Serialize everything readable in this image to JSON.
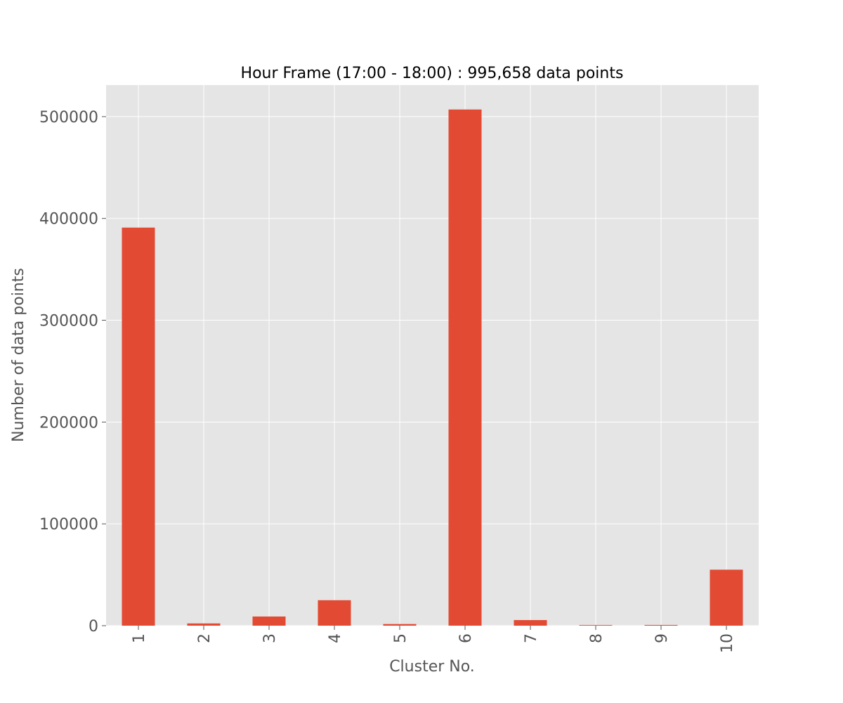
{
  "chart_data": {
    "type": "bar",
    "title": "Hour Frame (17:00 - 18:00) : 995,658 data points",
    "xlabel": "Cluster No.",
    "ylabel": "Number of data points",
    "categories": [
      "1",
      "2",
      "3",
      "4",
      "5",
      "6",
      "7",
      "8",
      "9",
      "10"
    ],
    "values": [
      391000,
      2200,
      9000,
      25000,
      1600,
      507000,
      5500,
      600,
      700,
      55000
    ],
    "ylim": [
      0,
      531000
    ],
    "yticks": [
      0,
      100000,
      200000,
      300000,
      400000,
      500000
    ],
    "grid": true,
    "bar_color": "#E24A33",
    "plot_background": "#E5E5E5",
    "grid_color": "#FFFFFF"
  }
}
